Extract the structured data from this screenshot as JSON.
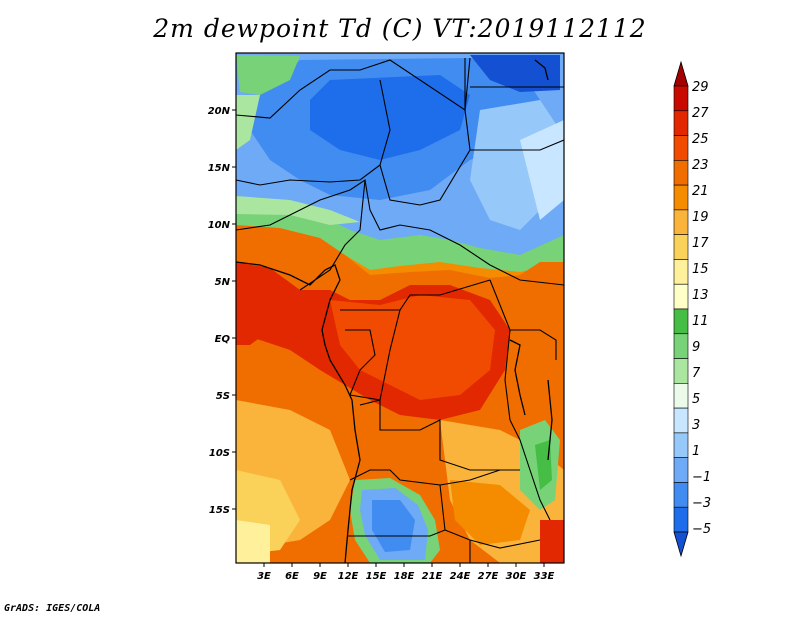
{
  "title": "2m dewpoint Td (C) VT:2019112112",
  "credit": "GrADS: IGES/COLA",
  "map": {
    "lat_labels": [
      "20N",
      "15N",
      "10N",
      "5N",
      "EQ",
      "5S",
      "10S",
      "15S"
    ],
    "lon_labels": [
      "3E",
      "6E",
      "9E",
      "12E",
      "15E",
      "18E",
      "21E",
      "24E",
      "27E",
      "30E",
      "33E"
    ],
    "lon_range": [
      0,
      34.5
    ],
    "lat_range": [
      -20,
      25
    ]
  },
  "colorbar": {
    "labels": [
      "29",
      "27",
      "25",
      "23",
      "21",
      "19",
      "17",
      "15",
      "13",
      "11",
      "9",
      "7",
      "5",
      "3",
      "1",
      "−1",
      "−3",
      "−5"
    ],
    "colors": [
      "#a50000",
      "#c80a00",
      "#e12800",
      "#f04b00",
      "#f06e00",
      "#f58c00",
      "#fab43c",
      "#fad25a",
      "#fff09b",
      "#ffffc8",
      "#46be46",
      "#78d278",
      "#aae6a0",
      "#ebfaeb",
      "#c8e6ff",
      "#96c8fa",
      "#6eaaf5",
      "#418cf0",
      "#1e6eeb",
      "#1450d2"
    ]
  }
}
